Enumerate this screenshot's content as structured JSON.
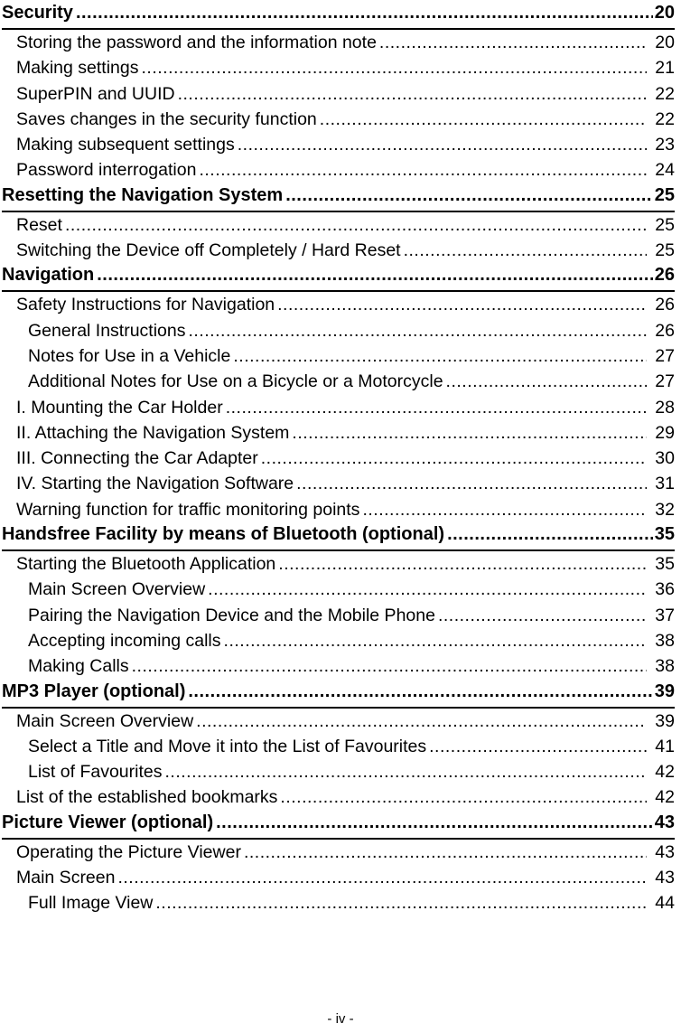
{
  "document": {
    "footer_page_label": "- iv -",
    "toc_entries": [
      {
        "level": 1,
        "label": "Security",
        "page": "20"
      },
      {
        "level": 2,
        "label": "Storing the password and the information note",
        "page": "20"
      },
      {
        "level": 2,
        "label": "Making settings",
        "page": "21"
      },
      {
        "level": 2,
        "label": "SuperPIN and UUID",
        "page": "22"
      },
      {
        "level": 2,
        "label": "Saves changes in the security function",
        "page": "22"
      },
      {
        "level": 2,
        "label": "Making subsequent settings",
        "page": "23"
      },
      {
        "level": 2,
        "label": "Password interrogation",
        "page": "24"
      },
      {
        "level": 1,
        "label": "Resetting the Navigation System",
        "page": "25"
      },
      {
        "level": 2,
        "label": "Reset",
        "page": "25"
      },
      {
        "level": 2,
        "label": "Switching the Device off Completely / Hard Reset",
        "page": "25"
      },
      {
        "level": 1,
        "label": "Navigation",
        "page": "26"
      },
      {
        "level": 2,
        "label": "Safety Instructions for Navigation",
        "page": "26"
      },
      {
        "level": 3,
        "label": "General Instructions",
        "page": "26"
      },
      {
        "level": 3,
        "label": "Notes for Use in a Vehicle",
        "page": "27"
      },
      {
        "level": 3,
        "label": "Additional Notes for Use on a Bicycle or a Motorcycle",
        "page": "27"
      },
      {
        "level": 2,
        "label": "I. Mounting the Car Holder",
        "page": "28"
      },
      {
        "level": 2,
        "label": "II. Attaching the Navigation System",
        "page": "29"
      },
      {
        "level": 2,
        "label": "III. Connecting the Car Adapter",
        "page": "30"
      },
      {
        "level": 2,
        "label": "IV. Starting the Navigation Software",
        "page": "31"
      },
      {
        "level": 2,
        "label": "Warning function for traffic monitoring points",
        "page": "32"
      },
      {
        "level": 1,
        "label": "Handsfree Facility by means of Bluetooth (optional)",
        "page": "35"
      },
      {
        "level": 2,
        "label": "Starting the Bluetooth Application",
        "page": "35"
      },
      {
        "level": 3,
        "label": "Main Screen Overview",
        "page": "36"
      },
      {
        "level": 3,
        "label": "Pairing the Navigation Device and the Mobile Phone",
        "page": "37"
      },
      {
        "level": 3,
        "label": "Accepting incoming calls",
        "page": "38"
      },
      {
        "level": 3,
        "label": "Making Calls",
        "page": "38"
      },
      {
        "level": 1,
        "label": "MP3 Player (optional)",
        "page": "39"
      },
      {
        "level": 2,
        "label": "Main Screen Overview",
        "page": "39"
      },
      {
        "level": 3,
        "label": "Select a Title and Move it into the List of Favourites",
        "page": "41"
      },
      {
        "level": 3,
        "label": "List of Favourites",
        "page": "42"
      },
      {
        "level": 2,
        "label": "List of the established bookmarks",
        "page": "42"
      },
      {
        "level": 1,
        "label": "Picture Viewer (optional)",
        "page": "43"
      },
      {
        "level": 2,
        "label": "Operating the Picture Viewer",
        "page": "43"
      },
      {
        "level": 2,
        "label": "Main Screen",
        "page": "43"
      },
      {
        "level": 3,
        "label": "Full Image View",
        "page": "44"
      }
    ]
  }
}
